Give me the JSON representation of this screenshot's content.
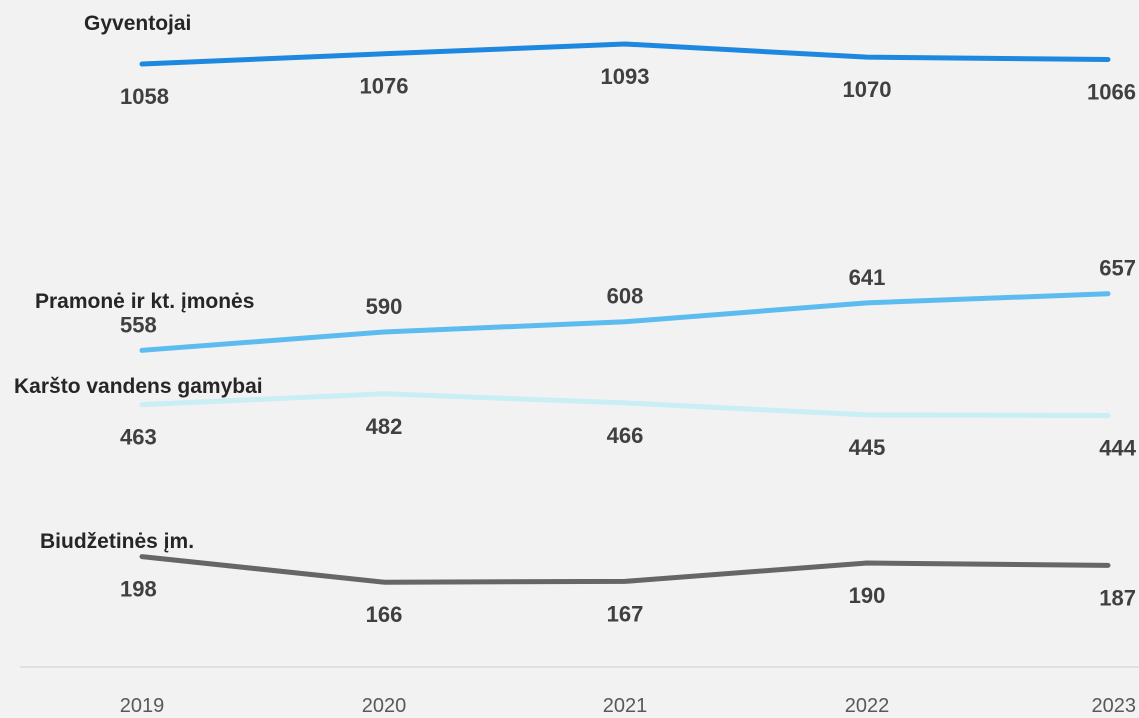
{
  "chart_data": {
    "type": "line",
    "categories": [
      "2019",
      "2020",
      "2021",
      "2022",
      "2023"
    ],
    "series": [
      {
        "name": "Gyventojai",
        "values": [
          1058,
          1076,
          1093,
          1070,
          1066
        ],
        "color": "#1e88e0",
        "labels": "below"
      },
      {
        "name": "Pramonė ir kt. įmonės",
        "values": [
          558,
          590,
          608,
          641,
          657
        ],
        "color": "#5cbcf0",
        "labels": "above"
      },
      {
        "name": "Karšto vandens gamybai",
        "values": [
          463,
          482,
          466,
          445,
          444
        ],
        "color": "#c9eef4",
        "labels": "below"
      },
      {
        "name": "Biudžetinės įm.",
        "values": [
          198,
          166,
          167,
          190,
          187
        ],
        "color": "#666666",
        "labels": "below"
      }
    ],
    "legend": "inline-left",
    "grid": false
  }
}
